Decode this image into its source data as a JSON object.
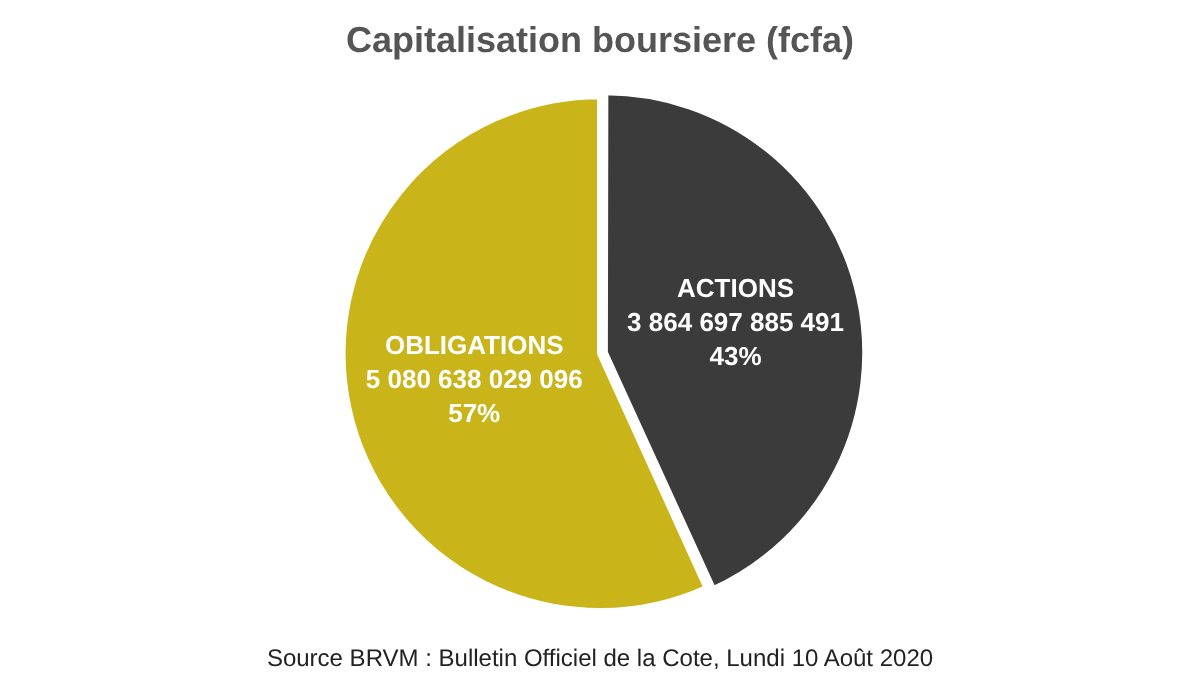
{
  "chart_data": {
    "type": "pie",
    "title": "Capitalisation boursiere (fcfa)",
    "categories": [
      "ACTIONS",
      "OBLIGATIONS"
    ],
    "values": [
      3864697885491,
      5080638029096
    ],
    "colors": [
      "#3b3b3b",
      "#c9b51a"
    ],
    "value_labels": [
      "3 864 697 885 491\n43%",
      "5 080 638 029 096\n57%"
    ],
    "legend": false,
    "annotations": [
      "Source BRVM : Bulletin Officiel de la Cote, Lundi 10 Août 2020"
    ]
  }
}
